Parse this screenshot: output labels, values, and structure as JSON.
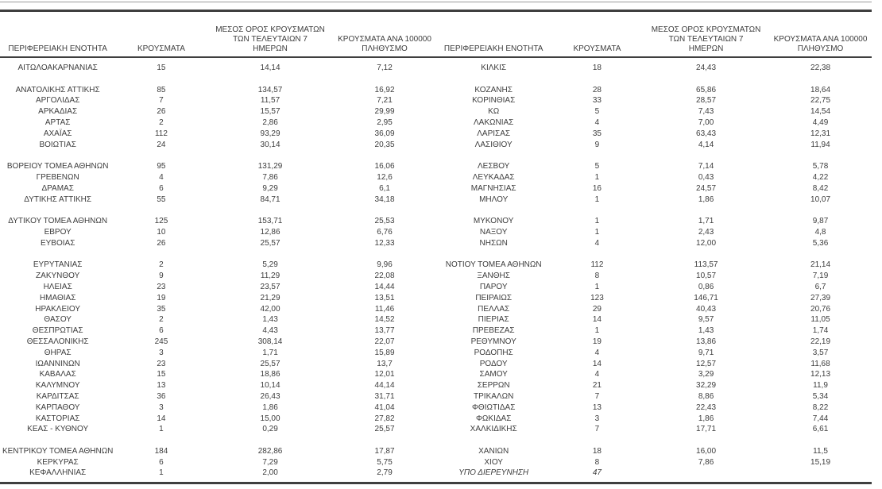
{
  "table_header": {
    "region": "ΠΕΡΙΦΕΡΕΙΑΚΗ ΕΝΟΤΗΤΑ",
    "cases": "ΚΡΟΥΣΜΑΤΑ",
    "avg7_lines": [
      "ΜΕΣΟΣ ΟΡΟΣ ΚΡΟΥΣΜΑΤΩΝ",
      "ΤΩΝ ΤΕΛΕΥΤΑΙΩΝ 7",
      "ΗΜΕΡΩΝ"
    ],
    "per100k_lines": [
      "ΚΡΟΥΣΜΑΤΑ ΑΝΑ 100000",
      "ΠΛΗΘΥΣΜΟ"
    ]
  },
  "colors": {
    "text": "#3d3d3d",
    "rule_dark": "#3f3f3f",
    "rule_light": "#9b9b9b",
    "background": "#ffffff"
  },
  "tables": [
    {
      "rows": [
        {
          "region": "ΑΙΤΩΛΟΑΚΑΡΝΑΝΙΑΣ",
          "cases": "15",
          "avg7": "14,14",
          "per100k": "7,12"
        },
        null,
        {
          "region": "ΑΝΑΤΟΛΙΚΗΣ ΑΤΤΙΚΗΣ",
          "cases": "85",
          "avg7": "134,57",
          "per100k": "16,92"
        },
        {
          "region": "ΑΡΓΟΛΙΔΑΣ",
          "cases": "7",
          "avg7": "11,57",
          "per100k": "7,21"
        },
        {
          "region": "ΑΡΚΑΔΙΑΣ",
          "cases": "26",
          "avg7": "15,57",
          "per100k": "29,99"
        },
        {
          "region": "ΑΡΤΑΣ",
          "cases": "2",
          "avg7": "2,86",
          "per100k": "2,95"
        },
        {
          "region": "ΑΧΑΪΑΣ",
          "cases": "112",
          "avg7": "93,29",
          "per100k": "36,09"
        },
        {
          "region": "ΒΟΙΩΤΙΑΣ",
          "cases": "24",
          "avg7": "30,14",
          "per100k": "20,35"
        },
        null,
        {
          "region": "ΒΟΡΕΙΟΥ ΤΟΜΕΑ ΑΘΗΝΩΝ",
          "cases": "95",
          "avg7": "131,29",
          "per100k": "16,06"
        },
        {
          "region": "ΓΡΕΒΕΝΩΝ",
          "cases": "4",
          "avg7": "7,86",
          "per100k": "12,6"
        },
        {
          "region": "ΔΡΑΜΑΣ",
          "cases": "6",
          "avg7": "9,29",
          "per100k": "6,1"
        },
        {
          "region": "ΔΥΤΙΚΗΣ ΑΤΤΙΚΗΣ",
          "cases": "55",
          "avg7": "84,71",
          "per100k": "34,18"
        },
        null,
        {
          "region": "ΔΥΤΙΚΟΥ ΤΟΜΕΑ ΑΘΗΝΩΝ",
          "cases": "125",
          "avg7": "153,71",
          "per100k": "25,53"
        },
        {
          "region": "ΕΒΡΟΥ",
          "cases": "10",
          "avg7": "12,86",
          "per100k": "6,76"
        },
        {
          "region": "ΕΥΒΟΙΑΣ",
          "cases": "26",
          "avg7": "25,57",
          "per100k": "12,33"
        },
        null,
        {
          "region": "ΕΥΡΥΤΑΝΙΑΣ",
          "cases": "2",
          "avg7": "5,29",
          "per100k": "9,96"
        },
        {
          "region": "ΖΑΚΥΝΘΟΥ",
          "cases": "9",
          "avg7": "11,29",
          "per100k": "22,08"
        },
        {
          "region": "ΗΛΕΙΑΣ",
          "cases": "23",
          "avg7": "23,57",
          "per100k": "14,44"
        },
        {
          "region": "ΗΜΑΘΙΑΣ",
          "cases": "19",
          "avg7": "21,29",
          "per100k": "13,51"
        },
        {
          "region": "ΗΡΑΚΛΕΙΟΥ",
          "cases": "35",
          "avg7": "42,00",
          "per100k": "11,46"
        },
        {
          "region": "ΘΑΣΟΥ",
          "cases": "2",
          "avg7": "1,43",
          "per100k": "14,52"
        },
        {
          "region": "ΘΕΣΠΡΩΤΙΑΣ",
          "cases": "6",
          "avg7": "4,43",
          "per100k": "13,77"
        },
        {
          "region": "ΘΕΣΣΑΛΟΝΙΚΗΣ",
          "cases": "245",
          "avg7": "308,14",
          "per100k": "22,07"
        },
        {
          "region": "ΘΗΡΑΣ",
          "cases": "3",
          "avg7": "1,71",
          "per100k": "15,89"
        },
        {
          "region": "ΙΩΑΝΝΙΝΩΝ",
          "cases": "23",
          "avg7": "25,57",
          "per100k": "13,7"
        },
        {
          "region": "ΚΑΒΑΛΑΣ",
          "cases": "15",
          "avg7": "18,86",
          "per100k": "12,01"
        },
        {
          "region": "ΚΑΛΥΜΝΟΥ",
          "cases": "13",
          "avg7": "10,14",
          "per100k": "44,14"
        },
        {
          "region": "ΚΑΡΔΙΤΣΑΣ",
          "cases": "36",
          "avg7": "26,43",
          "per100k": "31,71"
        },
        {
          "region": "ΚΑΡΠΑΘΟΥ",
          "cases": "3",
          "avg7": "1,86",
          "per100k": "41,04"
        },
        {
          "region": "ΚΑΣΤΟΡΙΑΣ",
          "cases": "14",
          "avg7": "15,00",
          "per100k": "27,82"
        },
        {
          "region": "ΚΕΑΣ - ΚΥΘΝΟΥ",
          "cases": "1",
          "avg7": "0,29",
          "per100k": "25,57"
        },
        null,
        {
          "region": "ΚΕΝΤΡΙΚΟΥ ΤΟΜΕΑ ΑΘΗΝΩΝ",
          "cases": "184",
          "avg7": "282,86",
          "per100k": "17,87"
        },
        {
          "region": "ΚΕΡΚΥΡΑΣ",
          "cases": "6",
          "avg7": "7,29",
          "per100k": "5,75"
        },
        {
          "region": "ΚΕΦΑΛΛΗΝΙΑΣ",
          "cases": "1",
          "avg7": "2,00",
          "per100k": "2,79"
        }
      ]
    },
    {
      "rows": [
        {
          "region": "ΚΙΛΚΙΣ",
          "cases": "18",
          "avg7": "24,43",
          "per100k": "22,38"
        },
        null,
        {
          "region": "ΚΟΖΑΝΗΣ",
          "cases": "28",
          "avg7": "65,86",
          "per100k": "18,64"
        },
        {
          "region": "ΚΟΡΙΝΘΙΑΣ",
          "cases": "33",
          "avg7": "28,57",
          "per100k": "22,75"
        },
        {
          "region": "ΚΩ",
          "cases": "5",
          "avg7": "7,43",
          "per100k": "14,54"
        },
        {
          "region": "ΛΑΚΩΝΙΑΣ",
          "cases": "4",
          "avg7": "7,00",
          "per100k": "4,49"
        },
        {
          "region": "ΛΑΡΙΣΑΣ",
          "cases": "35",
          "avg7": "63,43",
          "per100k": "12,31"
        },
        {
          "region": "ΛΑΣΙΘΙΟΥ",
          "cases": "9",
          "avg7": "4,14",
          "per100k": "11,94"
        },
        null,
        {
          "region": "ΛΕΣΒΟΥ",
          "cases": "5",
          "avg7": "7,14",
          "per100k": "5,78"
        },
        {
          "region": "ΛΕΥΚΑΔΑΣ",
          "cases": "1",
          "avg7": "0,43",
          "per100k": "4,22"
        },
        {
          "region": "ΜΑΓΝΗΣΙΑΣ",
          "cases": "16",
          "avg7": "24,57",
          "per100k": "8,42"
        },
        {
          "region": "ΜΗΛΟΥ",
          "cases": "1",
          "avg7": "1,86",
          "per100k": "10,07"
        },
        null,
        {
          "region": "ΜΥΚΟΝΟΥ",
          "cases": "1",
          "avg7": "1,71",
          "per100k": "9,87"
        },
        {
          "region": "ΝΑΞΟΥ",
          "cases": "1",
          "avg7": "2,43",
          "per100k": "4,8"
        },
        {
          "region": "ΝΗΣΩΝ",
          "cases": "4",
          "avg7": "12,00",
          "per100k": "5,36"
        },
        null,
        {
          "region": "ΝΟΤΙΟΥ ΤΟΜΕΑ ΑΘΗΝΩΝ",
          "cases": "112",
          "avg7": "113,57",
          "per100k": "21,14"
        },
        {
          "region": "ΞΑΝΘΗΣ",
          "cases": "8",
          "avg7": "10,57",
          "per100k": "7,19"
        },
        {
          "region": "ΠΑΡΟΥ",
          "cases": "1",
          "avg7": "0,86",
          "per100k": "6,7"
        },
        {
          "region": "ΠΕΙΡΑΙΩΣ",
          "cases": "123",
          "avg7": "146,71",
          "per100k": "27,39"
        },
        {
          "region": "ΠΕΛΛΑΣ",
          "cases": "29",
          "avg7": "40,43",
          "per100k": "20,76"
        },
        {
          "region": "ΠΙΕΡΙΑΣ",
          "cases": "14",
          "avg7": "9,57",
          "per100k": "11,05"
        },
        {
          "region": "ΠΡΕΒΕΖΑΣ",
          "cases": "1",
          "avg7": "1,43",
          "per100k": "1,74"
        },
        {
          "region": "ΡΕΘΥΜΝΟΥ",
          "cases": "19",
          "avg7": "13,86",
          "per100k": "22,19"
        },
        {
          "region": "ΡΟΔΟΠΗΣ",
          "cases": "4",
          "avg7": "9,71",
          "per100k": "3,57"
        },
        {
          "region": "ΡΟΔΟΥ",
          "cases": "14",
          "avg7": "12,57",
          "per100k": "11,68"
        },
        {
          "region": "ΣΑΜΟΥ",
          "cases": "4",
          "avg7": "3,29",
          "per100k": "12,13"
        },
        {
          "region": "ΣΕΡΡΩΝ",
          "cases": "21",
          "avg7": "32,29",
          "per100k": "11,9"
        },
        {
          "region": "ΤΡΙΚΑΛΩΝ",
          "cases": "7",
          "avg7": "8,86",
          "per100k": "5,34"
        },
        {
          "region": "ΦΘΙΩΤΙΔΑΣ",
          "cases": "13",
          "avg7": "22,43",
          "per100k": "8,22"
        },
        {
          "region": "ΦΩΚΙΔΑΣ",
          "cases": "3",
          "avg7": "1,86",
          "per100k": "7,44"
        },
        {
          "region": "ΧΑΛΚΙΔΙΚΗΣ",
          "cases": "7",
          "avg7": "17,71",
          "per100k": "6,61"
        },
        null,
        {
          "region": "ΧΑΝΙΩΝ",
          "cases": "18",
          "avg7": "16,00",
          "per100k": "11,5"
        },
        {
          "region": "ΧΙΟΥ",
          "cases": "8",
          "avg7": "7,86",
          "per100k": "15,19"
        },
        {
          "region": "ΥΠΟ ΔΙΕΡΕΥΝΗΣΗ",
          "cases": "47",
          "avg7": "",
          "per100k": "",
          "italic": true
        }
      ]
    }
  ]
}
